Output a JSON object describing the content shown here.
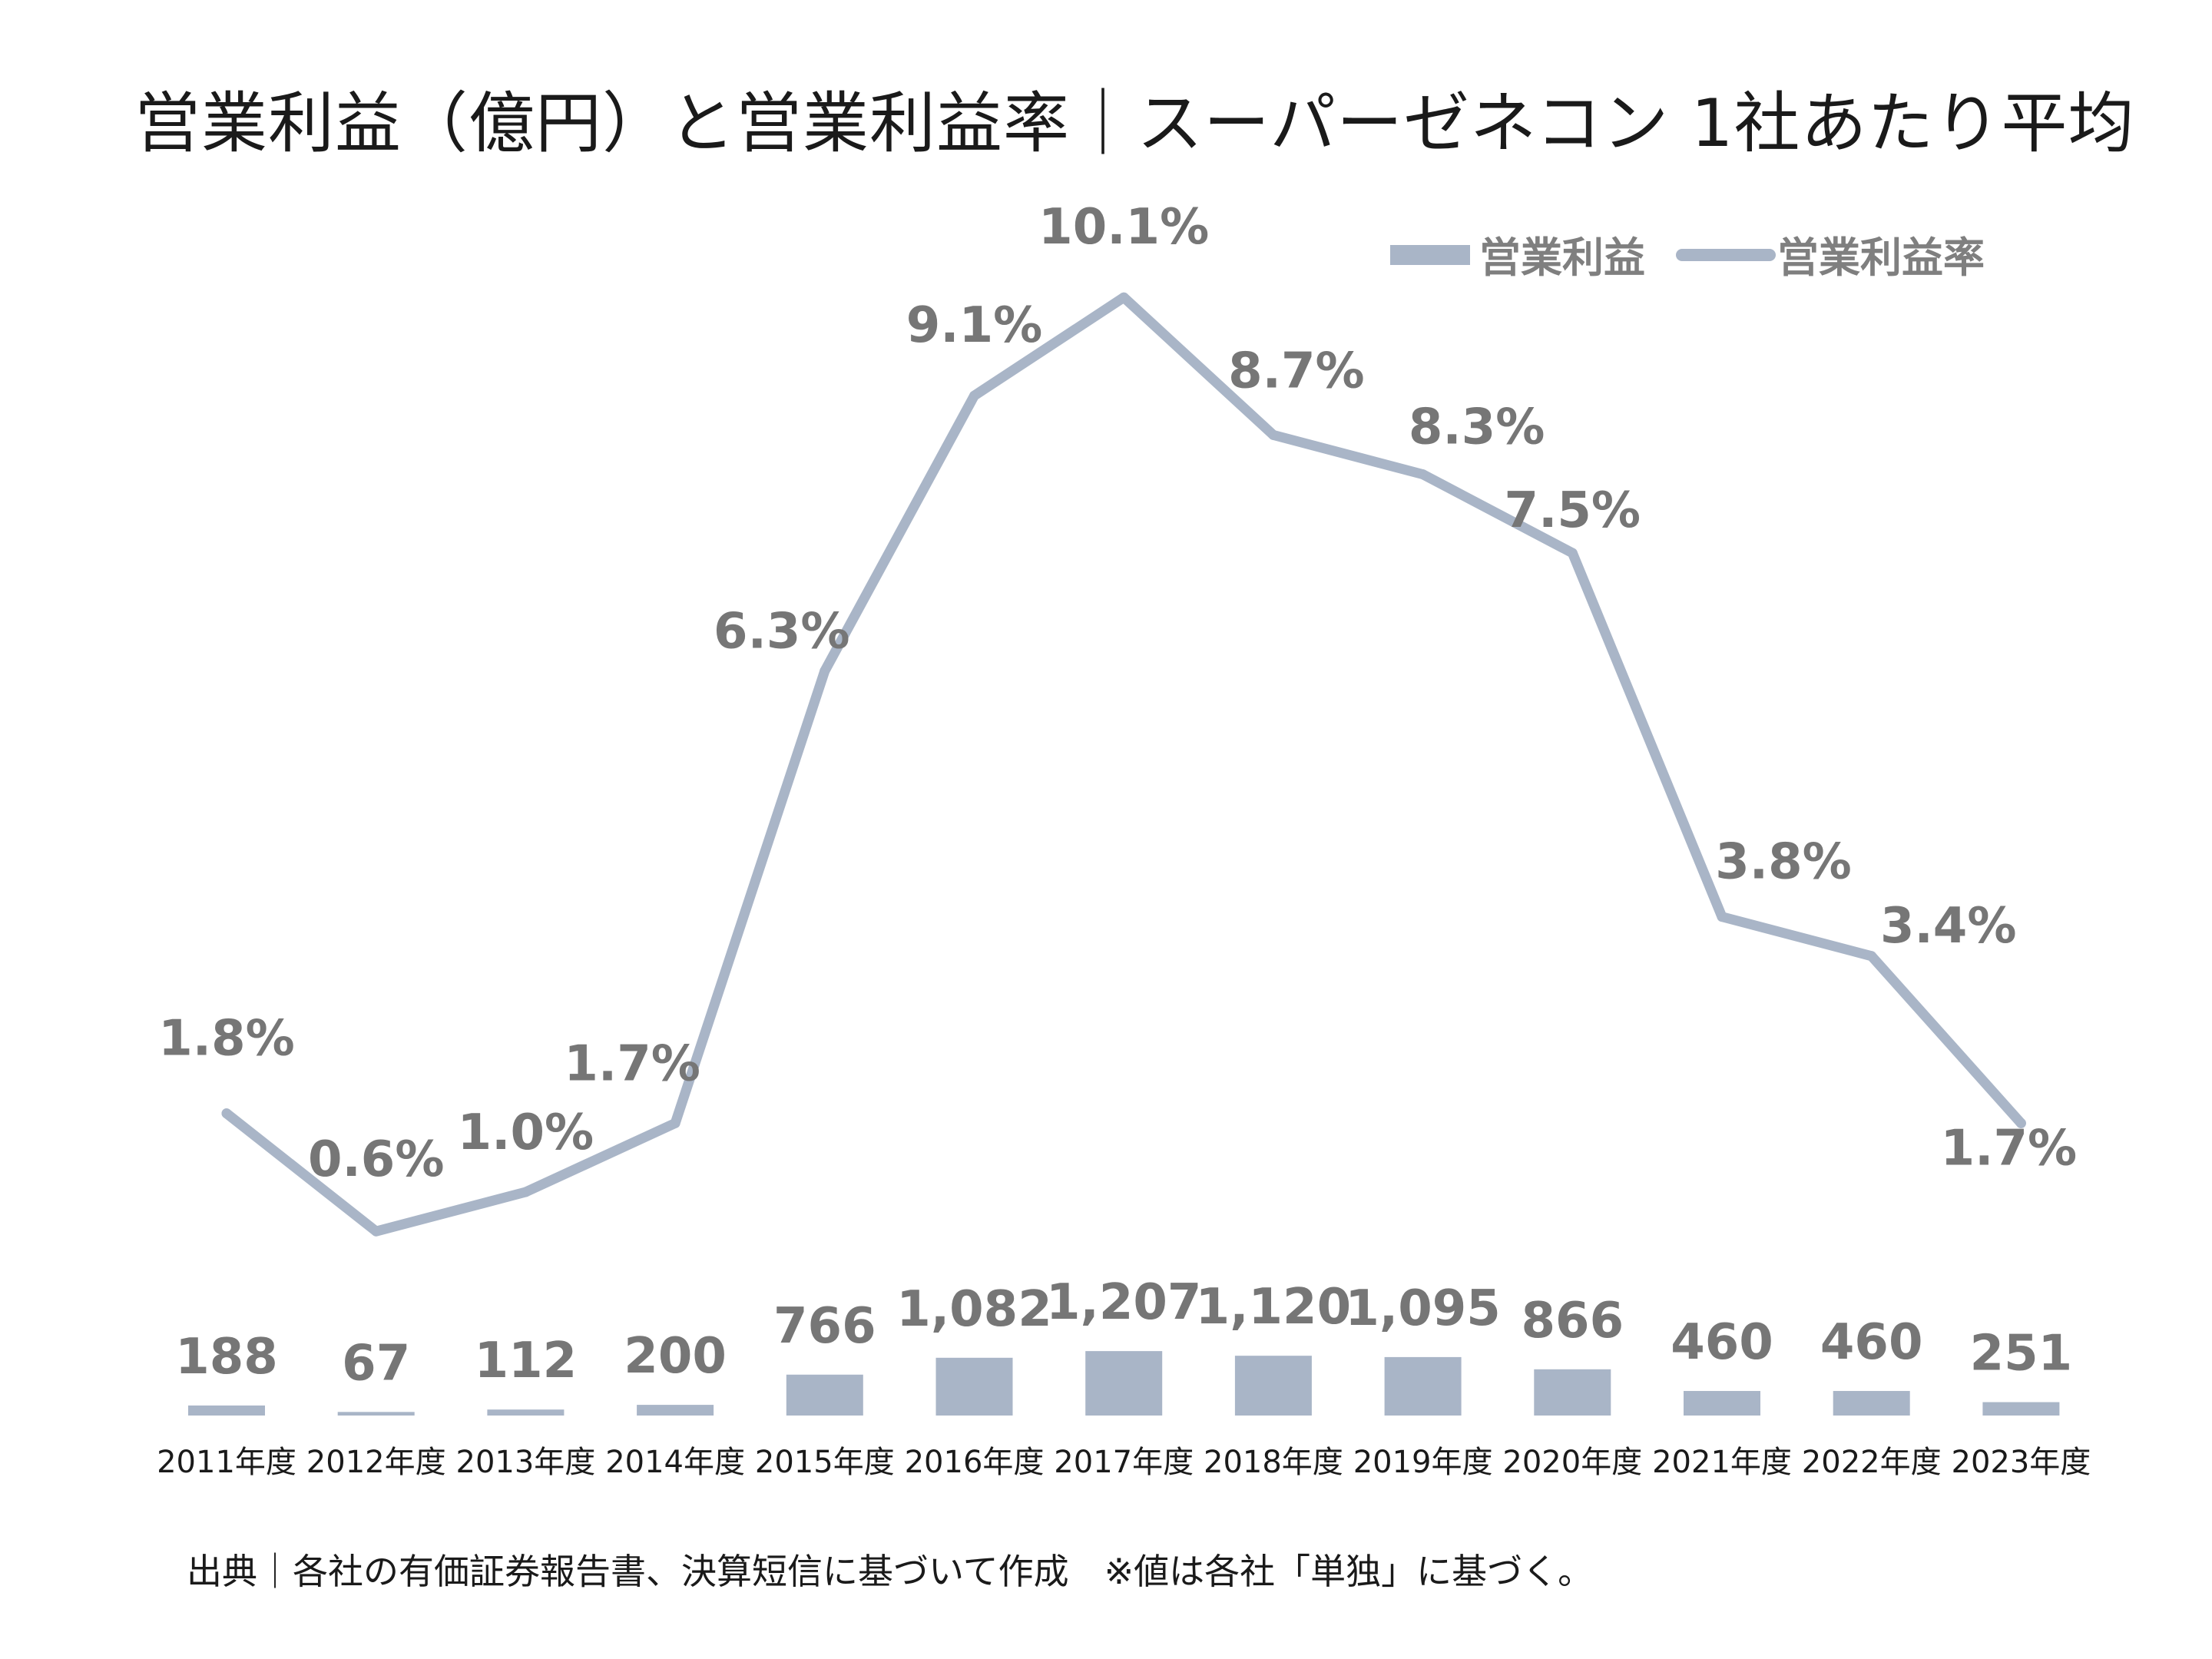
{
  "title": "営業利益（億円）と営業利益率｜スーパーゼネコン 1社あたり平均",
  "source_note": "出典｜各社の有価証券報告書、決算短信に基づいて作成　※値は各社「単独」に基づく。",
  "colors": {
    "series": "#a9b5c7",
    "label": "#767676",
    "legend_text": "#7f7f7f"
  },
  "chart_data": {
    "type": "bar",
    "categories": [
      "2011年度",
      "2012年度",
      "2013年度",
      "2014年度",
      "2015年度",
      "2016年度",
      "2017年度",
      "2018年度",
      "2019年度",
      "2020年度",
      "2021年度",
      "2022年度",
      "2023年度"
    ],
    "series": [
      {
        "name": "営業利益",
        "type": "bar",
        "axis": "left",
        "values": [
          188,
          67,
          112,
          200,
          766,
          1082,
          1207,
          1120,
          1095,
          866,
          460,
          460,
          251
        ],
        "labels": [
          "188",
          "67",
          "112",
          "200",
          "766",
          "1,082",
          "1,207",
          "1,120",
          "1,095",
          "866",
          "460",
          "460",
          "251"
        ]
      },
      {
        "name": "営業利益率",
        "type": "line",
        "axis": "right",
        "values": [
          1.8,
          0.6,
          1.0,
          1.7,
          6.3,
          9.1,
          10.1,
          8.7,
          8.3,
          7.5,
          3.8,
          3.4,
          1.7
        ],
        "labels": [
          "1.8%",
          "0.6%",
          "1.0%",
          "1.7%",
          "6.3%",
          "9.1%",
          "10.1%",
          "8.7%",
          "8.3%",
          "7.5%",
          "3.8%",
          "3.4%",
          "1.7%"
        ]
      }
    ],
    "legend_position": "top-right",
    "grid": false
  }
}
